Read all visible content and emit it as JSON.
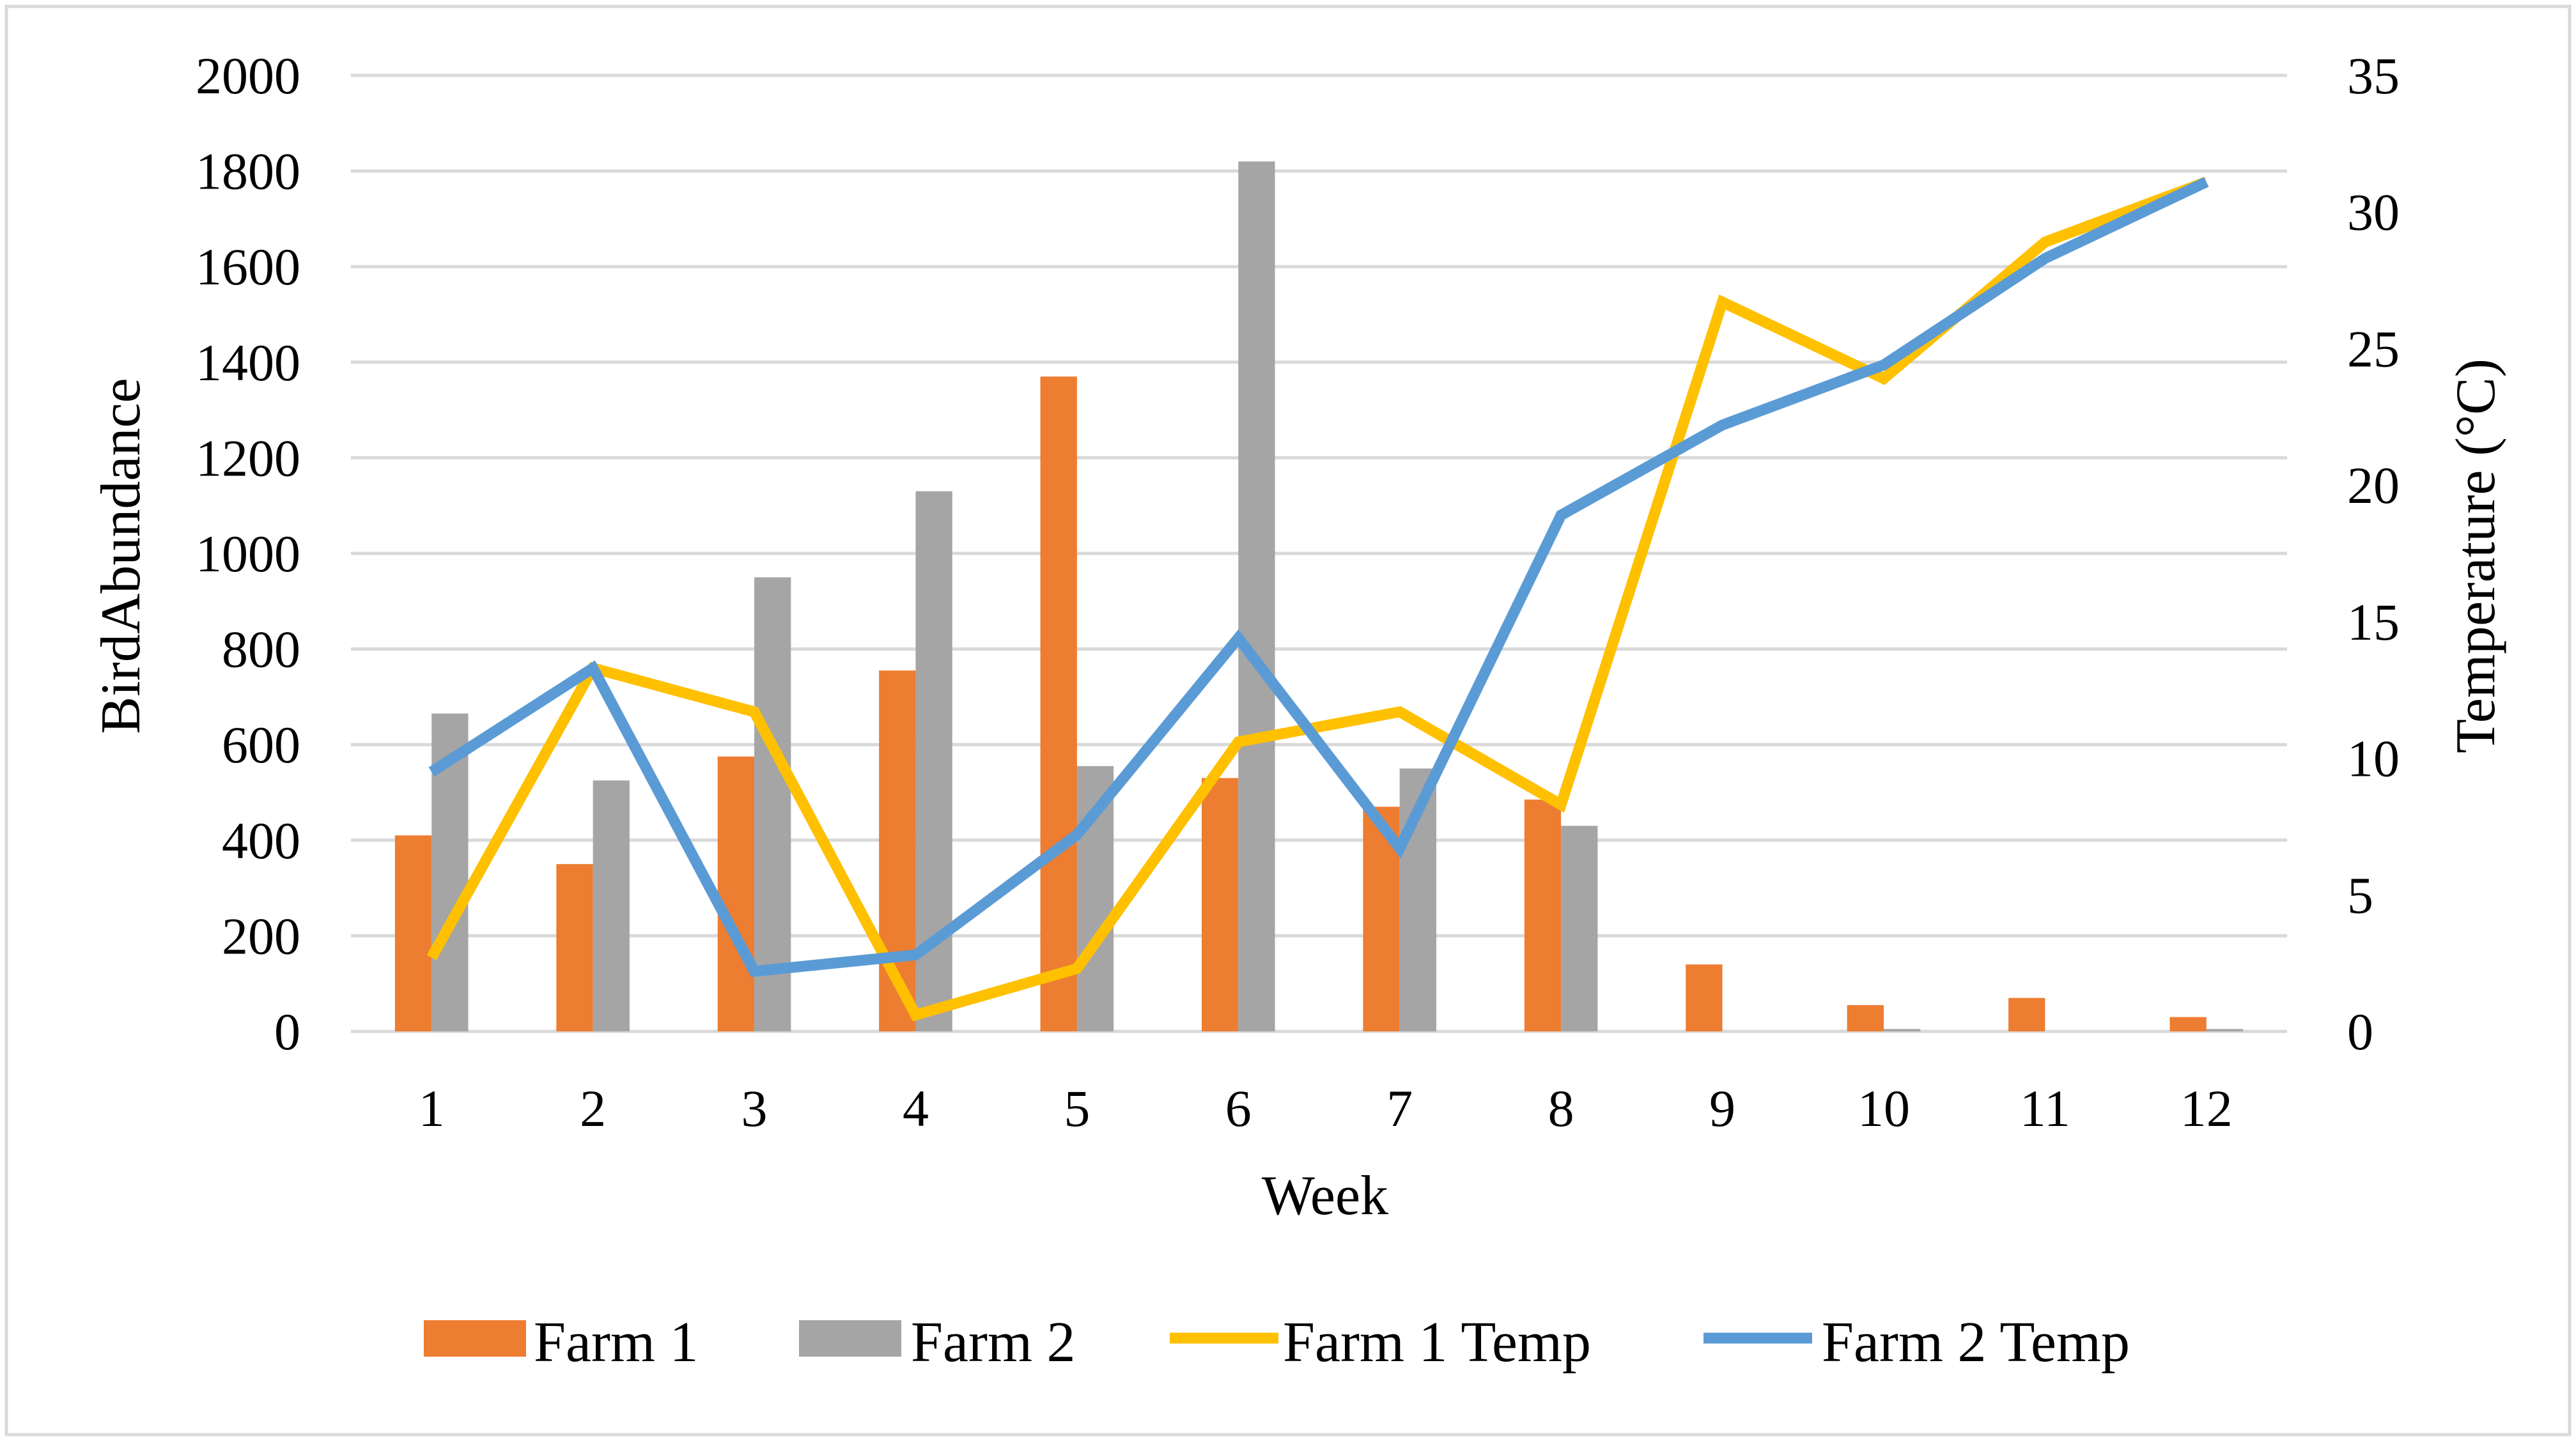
{
  "chart_data": {
    "type": "bar",
    "combo": "bar+line (secondary axis)",
    "title": "",
    "xlabel": "Week",
    "ylabel": "BirdAbundance",
    "y2label": "Temperature (°C)",
    "ylim": [
      0,
      2000
    ],
    "y2lim": [
      0,
      35
    ],
    "grid": true,
    "legend_position": "bottom",
    "categories": [
      "1",
      "2",
      "3",
      "4",
      "5",
      "6",
      "7",
      "8",
      "9",
      "10",
      "11",
      "12"
    ],
    "yticks": [
      "0",
      "200",
      "400",
      "600",
      "800",
      "1000",
      "1200",
      "1400",
      "1600",
      "1800",
      "2000"
    ],
    "y2ticks": [
      "0",
      "5",
      "10",
      "15",
      "20",
      "25",
      "30",
      "35"
    ],
    "series": [
      {
        "name": "Farm 1",
        "kind": "bar",
        "axis": "left",
        "color": "#ED7D31",
        "values": [
          410,
          350,
          575,
          755,
          1370,
          530,
          470,
          485,
          140,
          55,
          70,
          30
        ]
      },
      {
        "name": "Farm 2",
        "kind": "bar",
        "axis": "left",
        "color": "#A5A5A5",
        "values": [
          665,
          525,
          950,
          1130,
          555,
          1820,
          550,
          430,
          0,
          5,
          0,
          5
        ]
      },
      {
        "name": "Farm 1 Temp",
        "kind": "line",
        "axis": "right",
        "color": "#FFC000",
        "values": [
          2.7,
          13.3,
          11.7,
          0.6,
          2.3,
          10.6,
          11.7,
          8.3,
          26.7,
          23.9,
          28.9,
          31.1
        ]
      },
      {
        "name": "Farm 2 Temp",
        "kind": "line",
        "axis": "right",
        "color": "#5B9BD5",
        "values": [
          9.5,
          13.3,
          2.2,
          2.8,
          7.2,
          14.4,
          6.7,
          18.9,
          22.2,
          24.4,
          28.3,
          31.1
        ]
      }
    ]
  }
}
